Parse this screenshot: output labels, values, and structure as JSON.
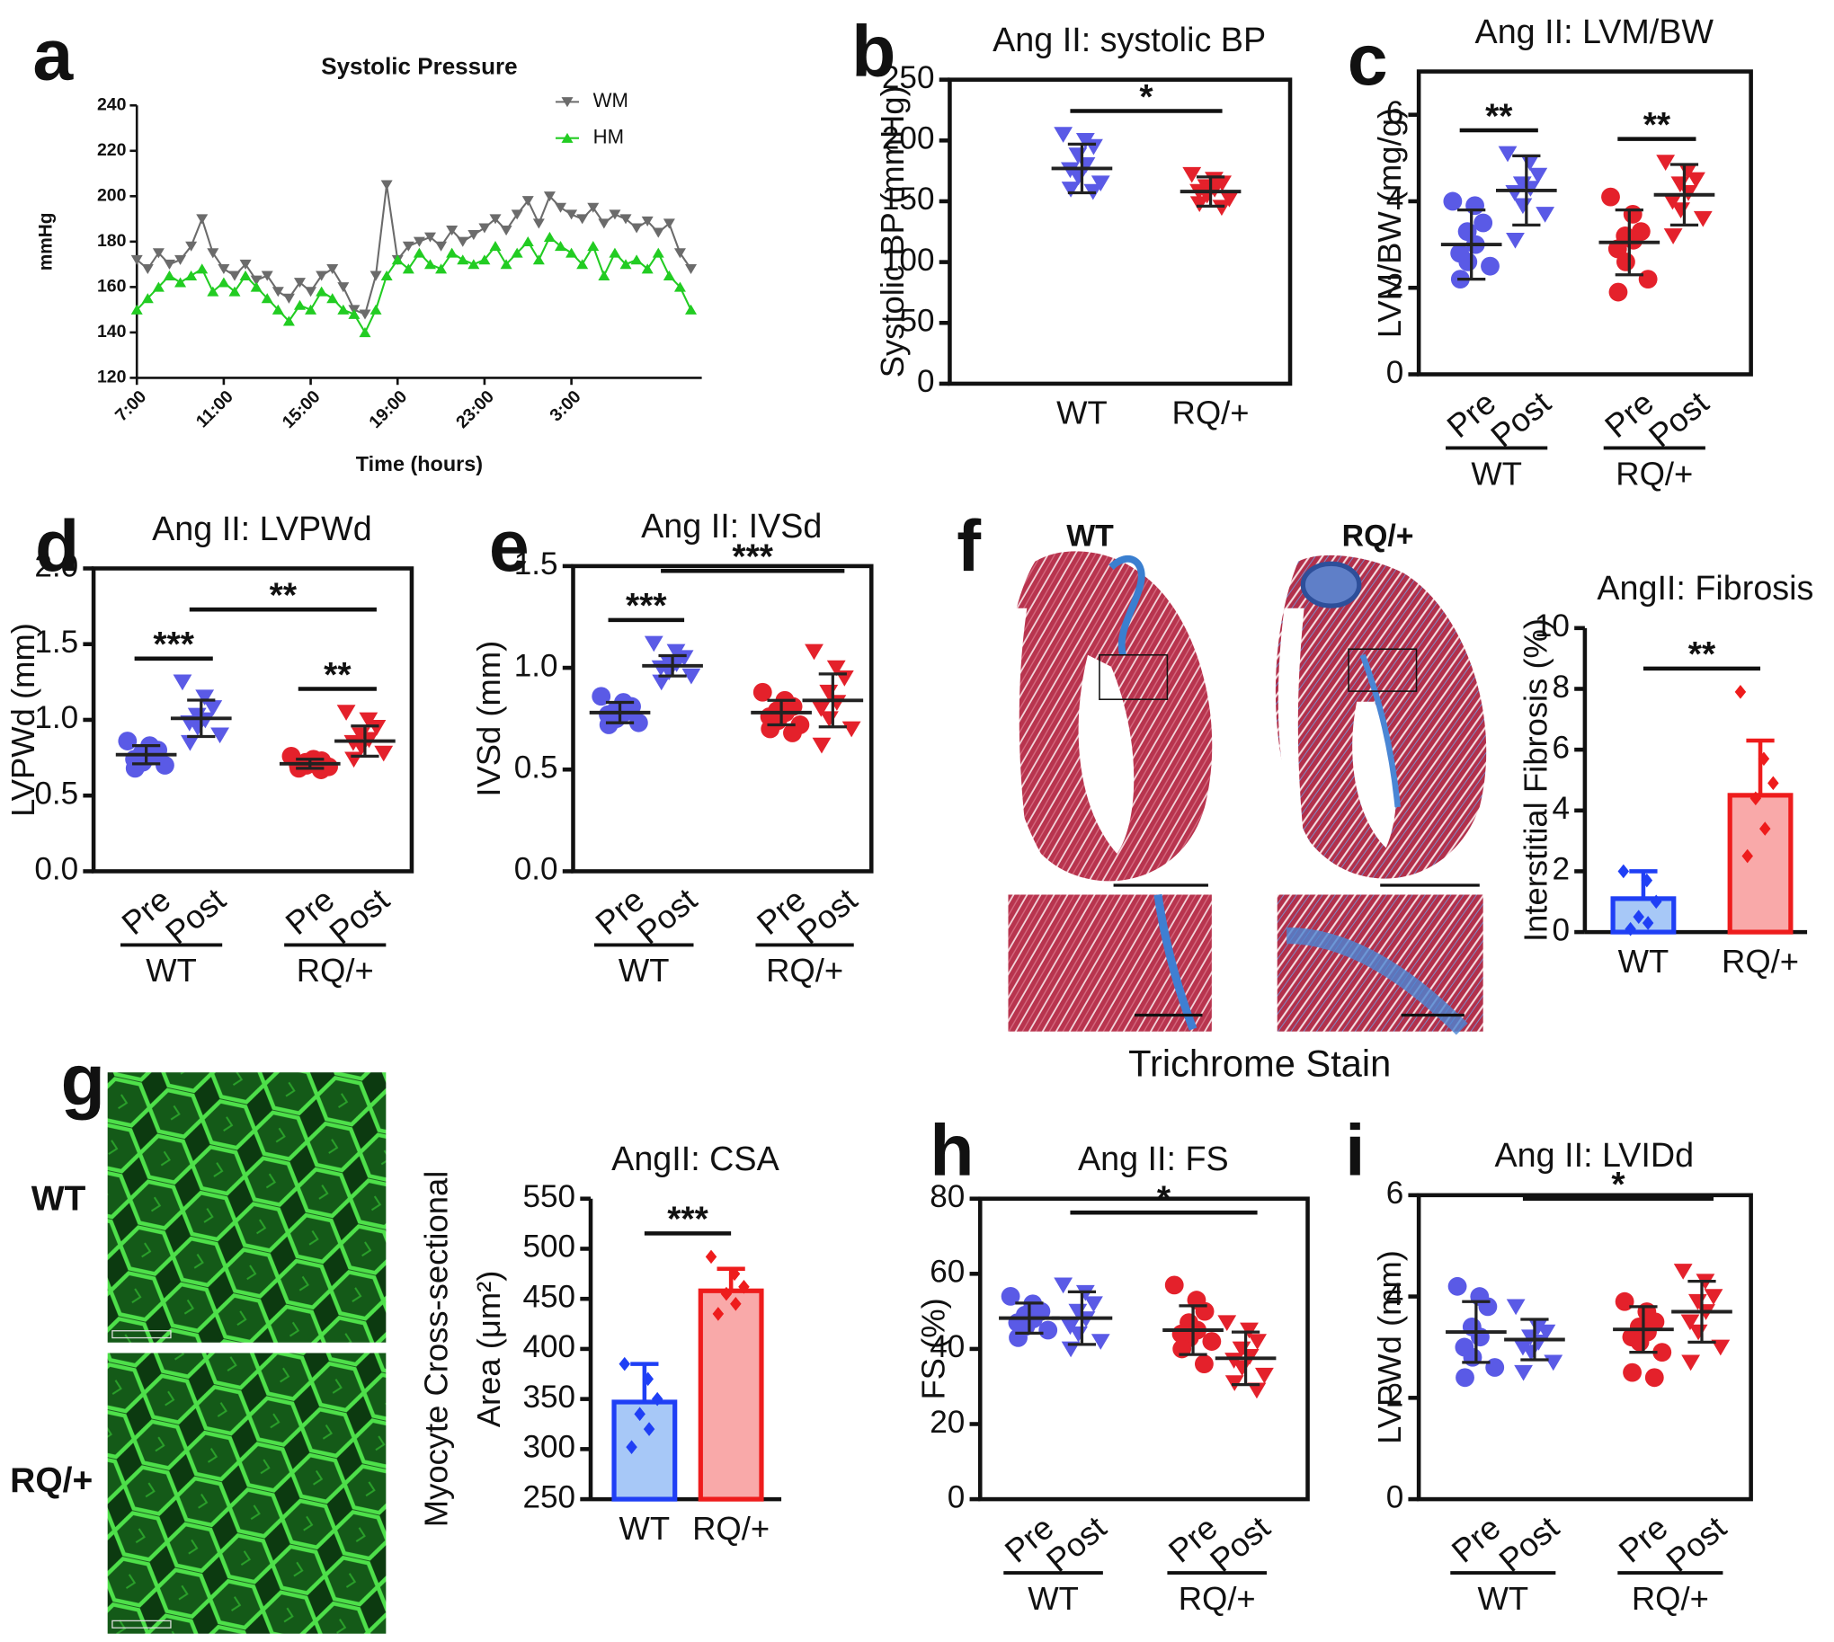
{
  "chart_data": [
    {
      "type": "line",
      "panel": "a",
      "title": "Systolic Pressure",
      "xlabel": "Time (hours)",
      "ylabel": "mmHg",
      "xlim": [
        7,
        33
      ],
      "ylim": [
        120,
        240
      ],
      "xticks": [
        {
          "value": 7,
          "label": "7:00"
        },
        {
          "value": 11,
          "label": "11:00"
        },
        {
          "value": 15,
          "label": "15:00"
        },
        {
          "value": 19,
          "label": "19:00"
        },
        {
          "value": 23,
          "label": "23:00"
        },
        {
          "value": 27,
          "label": "3:00"
        }
      ],
      "yticks": [
        120,
        140,
        160,
        180,
        200,
        220,
        240
      ],
      "legend": "upper right",
      "x": [
        7,
        7.5,
        8,
        8.5,
        9,
        9.5,
        10,
        10.5,
        11,
        11.5,
        12,
        12.5,
        13,
        13.5,
        14,
        14.5,
        15,
        15.5,
        16,
        16.5,
        17,
        17.5,
        18,
        18.5,
        19,
        19.5,
        20,
        20.5,
        21,
        21.5,
        22,
        22.5,
        23,
        23.5,
        24,
        24.5,
        25,
        25.5,
        26,
        26.5,
        27,
        27.5,
        28,
        28.5,
        29,
        29.5,
        30,
        30.5,
        31,
        31.5,
        32,
        32.5
      ],
      "series": [
        {
          "name": "WM",
          "color": "#6b6b6b",
          "marker": "triangle-down",
          "values": [
            172,
            168,
            175,
            170,
            172,
            178,
            190,
            175,
            168,
            165,
            170,
            163,
            165,
            158,
            155,
            162,
            158,
            165,
            168,
            160,
            150,
            148,
            165,
            205,
            172,
            178,
            180,
            182,
            178,
            185,
            180,
            183,
            186,
            190,
            185,
            192,
            198,
            188,
            200,
            195,
            192,
            190,
            195,
            188,
            192,
            190,
            186,
            189,
            184,
            188,
            175,
            168
          ]
        },
        {
          "name": "HM",
          "color": "#22cc22",
          "marker": "triangle-up",
          "values": [
            150,
            155,
            160,
            165,
            162,
            165,
            168,
            158,
            162,
            158,
            165,
            160,
            155,
            150,
            145,
            152,
            150,
            158,
            155,
            150,
            148,
            140,
            150,
            165,
            172,
            168,
            175,
            170,
            168,
            175,
            172,
            170,
            172,
            178,
            170,
            175,
            180,
            172,
            182,
            178,
            175,
            170,
            178,
            165,
            175,
            170,
            172,
            168,
            175,
            165,
            160,
            150
          ]
        }
      ]
    },
    {
      "type": "dotplot",
      "panel": "b",
      "title": "Ang II: systolic BP",
      "ylabel": "Systolic BP (mmHg)",
      "frame": true,
      "ylim": [
        0,
        250
      ],
      "yticks": [
        0,
        50,
        100,
        150,
        200,
        250
      ],
      "categories": [
        "WT",
        "RQ/+"
      ],
      "colors": [
        "#5a5ae6",
        "#e4212b"
      ],
      "markers": [
        "triangle-down",
        "triangle-down"
      ],
      "points": [
        [
          205,
          200,
          195,
          188,
          180,
          176,
          170,
          165,
          160,
          158
        ],
        [
          172,
          168,
          165,
          162,
          160,
          158,
          155,
          152,
          148,
          145
        ]
      ],
      "means": [
        177,
        158
      ],
      "sd": [
        20,
        12
      ],
      "significance": [
        {
          "pair": [
            0,
            1
          ],
          "label": "*"
        }
      ]
    },
    {
      "type": "dotplot",
      "panel": "c",
      "title": "Ang II: LVM/BW",
      "ylabel": "LVM/BW (mg/g)",
      "frame": true,
      "ylim": [
        0,
        7
      ],
      "yticks": [
        0,
        2,
        4,
        6
      ],
      "categories": [
        "Pre",
        "Post",
        "Pre",
        "Post"
      ],
      "groups": [
        "WT",
        "RQ/+"
      ],
      "colors": [
        "#5a5ae6",
        "#5a5ae6",
        "#e4212b",
        "#e4212b"
      ],
      "markers": [
        "circle",
        "triangle-down",
        "circle",
        "triangle-down"
      ],
      "points": [
        [
          4.0,
          3.9,
          3.5,
          3.3,
          3.0,
          2.8,
          2.6,
          2.5,
          2.2
        ],
        [
          5.1,
          4.9,
          4.6,
          4.4,
          4.3,
          4.2,
          3.9,
          3.7,
          3.1
        ],
        [
          4.1,
          3.7,
          3.3,
          3.2,
          3.1,
          2.9,
          2.6,
          2.2,
          1.9
        ],
        [
          4.9,
          4.7,
          4.5,
          4.4,
          4.2,
          4.0,
          3.8,
          3.6,
          3.2
        ]
      ],
      "means": [
        3.0,
        4.25,
        3.05,
        4.15
      ],
      "sd": [
        0.8,
        0.8,
        0.75,
        0.7
      ],
      "significance": [
        {
          "pair": [
            0,
            1
          ],
          "label": "**"
        },
        {
          "pair": [
            2,
            3
          ],
          "label": "**"
        }
      ]
    },
    {
      "type": "dotplot",
      "panel": "d",
      "title": "Ang II: LVPWd",
      "ylabel": "LVPWd (mm)",
      "frame": true,
      "ylim": [
        0,
        2
      ],
      "yticks": [
        {
          "value": 0,
          "label": "0.0"
        },
        0.5,
        {
          "value": 1,
          "label": "1.0"
        },
        1.5,
        {
          "value": 2,
          "label": "2.0"
        }
      ],
      "categories": [
        "Pre",
        "Post",
        "Pre",
        "Post"
      ],
      "groups": [
        "WT",
        "RQ/+"
      ],
      "colors": [
        "#5a5ae6",
        "#5a5ae6",
        "#e4212b",
        "#e4212b"
      ],
      "markers": [
        "circle",
        "triangle-down",
        "circle",
        "triangle-down"
      ],
      "points": [
        [
          0.86,
          0.83,
          0.8,
          0.78,
          0.76,
          0.74,
          0.72,
          0.7,
          0.68
        ],
        [
          1.25,
          1.15,
          1.08,
          1.03,
          1.0,
          0.98,
          0.95,
          0.9,
          0.85
        ],
        [
          0.76,
          0.74,
          0.73,
          0.72,
          0.71,
          0.7,
          0.7,
          0.69,
          0.68,
          0.67
        ],
        [
          1.05,
          1.0,
          0.95,
          0.9,
          0.87,
          0.85,
          0.82,
          0.78,
          0.74
        ]
      ],
      "means": [
        0.77,
        1.01,
        0.71,
        0.86
      ],
      "sd": [
        0.06,
        0.12,
        0.03,
        0.1
      ],
      "significance": [
        {
          "pair": [
            0,
            1
          ],
          "label": "***"
        },
        {
          "pair": [
            2,
            3
          ],
          "label": "**"
        },
        {
          "pair": [
            1,
            3
          ],
          "label": "**"
        }
      ]
    },
    {
      "type": "dotplot",
      "panel": "e",
      "title": "Ang II: IVSd",
      "ylabel": "IVSd (mm)",
      "frame": true,
      "ylim": [
        0,
        1.5
      ],
      "yticks": [
        {
          "value": 0,
          "label": "0.0"
        },
        0.5,
        {
          "value": 1,
          "label": "1.0"
        },
        1.5
      ],
      "categories": [
        "Pre",
        "Post",
        "Pre",
        "Post"
      ],
      "groups": [
        "WT",
        "RQ/+"
      ],
      "colors": [
        "#5a5ae6",
        "#5a5ae6",
        "#e4212b",
        "#e4212b"
      ],
      "markers": [
        "circle",
        "triangle-down",
        "circle",
        "triangle-down"
      ],
      "points": [
        [
          0.86,
          0.83,
          0.81,
          0.79,
          0.78,
          0.77,
          0.75,
          0.73,
          0.72
        ],
        [
          1.12,
          1.08,
          1.05,
          1.03,
          1.02,
          1.0,
          0.98,
          0.96,
          0.93
        ],
        [
          0.88,
          0.84,
          0.81,
          0.79,
          0.78,
          0.76,
          0.74,
          0.72,
          0.7,
          0.68
        ],
        [
          1.08,
          1.0,
          0.95,
          0.88,
          0.83,
          0.8,
          0.75,
          0.7,
          0.62
        ]
      ],
      "means": [
        0.78,
        1.01,
        0.78,
        0.84
      ],
      "sd": [
        0.05,
        0.05,
        0.06,
        0.13
      ],
      "significance": [
        {
          "pair": [
            0,
            1
          ],
          "label": "***"
        },
        {
          "pair": [
            1,
            3
          ],
          "label": "***"
        }
      ]
    },
    {
      "type": "bar",
      "title": "AngII: Fibrosis",
      "ylabel": "Interstitial Fibrosis (%)",
      "ylim": [
        0,
        10
      ],
      "yticks": [
        0,
        2,
        4,
        6,
        8,
        10
      ],
      "categories": [
        "WT",
        "RQ/+"
      ],
      "colors": [
        "#1f3ff5",
        "#ee1c1c"
      ],
      "fills": [
        "#a7c8f7",
        "#f9a9a9"
      ],
      "markers": [
        "diamond",
        "diamond"
      ],
      "values": [
        1.1,
        4.5
      ],
      "errors": [
        0.9,
        1.8
      ],
      "points": [
        [
          2.0,
          1.7,
          1.0,
          0.5,
          0.3,
          0.1
        ],
        [
          7.9,
          5.7,
          4.9,
          4.4,
          3.4,
          2.5
        ]
      ],
      "significance": [
        {
          "pair": [
            0,
            1
          ],
          "label": "**"
        }
      ]
    },
    {
      "type": "bar",
      "title": "AngII: CSA",
      "ylabel": [
        "Myocyte Cross-sectional",
        "Area (μm²)"
      ],
      "ylim": [
        250,
        550
      ],
      "yticks": [
        250,
        300,
        350,
        400,
        450,
        500,
        550
      ],
      "categories": [
        "WT",
        "RQ/+"
      ],
      "colors": [
        "#1f3ff5",
        "#ee1c1c"
      ],
      "fills": [
        "#a7c8f7",
        "#f9a9a9"
      ],
      "markers": [
        "diamond",
        "diamond"
      ],
      "values": [
        347,
        458
      ],
      "errors": [
        38,
        22
      ],
      "points": [
        [
          385,
          370,
          350,
          335,
          320,
          302
        ],
        [
          492,
          475,
          462,
          455,
          445,
          435
        ]
      ],
      "significance": [
        {
          "pair": [
            0,
            1
          ],
          "label": "***"
        }
      ]
    },
    {
      "type": "dotplot",
      "panel": "h",
      "title": "Ang II: FS",
      "ylabel": "FS (%)",
      "frame": true,
      "ylim": [
        0,
        80
      ],
      "yticks": [
        0,
        20,
        40,
        60,
        80
      ],
      "categories": [
        "Pre",
        "Post",
        "Pre",
        "Post"
      ],
      "groups": [
        "WT",
        "RQ/+"
      ],
      "colors": [
        "#5a5ae6",
        "#5a5ae6",
        "#e4212b",
        "#e4212b"
      ],
      "markers": [
        "circle",
        "triangle-down",
        "circle",
        "triangle-down"
      ],
      "points": [
        [
          54,
          52,
          50,
          49,
          48,
          47,
          46,
          45,
          43
        ],
        [
          57,
          55,
          52,
          50,
          48,
          46,
          44,
          42,
          40
        ],
        [
          57,
          53,
          50,
          47,
          45,
          44,
          43,
          42,
          40,
          36
        ],
        [
          47,
          45,
          42,
          40,
          38,
          37,
          35,
          33,
          31,
          29
        ]
      ],
      "means": [
        48.2,
        48.2,
        45,
        37.5
      ],
      "sd": [
        4,
        7,
        6.5,
        7
      ],
      "significance": [
        {
          "pair": [
            1,
            3
          ],
          "label": "*"
        }
      ]
    },
    {
      "type": "dotplot",
      "panel": "i",
      "title": "Ang II: LVIDd",
      "ylabel": "LVPWd (mm)",
      "frame": true,
      "ylim": [
        0,
        6
      ],
      "yticks": [
        0,
        2,
        4,
        6
      ],
      "categories": [
        "Pre",
        "Post",
        "Pre",
        "Post"
      ],
      "groups": [
        "WT",
        "RQ/+"
      ],
      "colors": [
        "#5a5ae6",
        "#5a5ae6",
        "#e4212b",
        "#e4212b"
      ],
      "markers": [
        "circle",
        "triangle-down",
        "circle",
        "triangle-down"
      ],
      "points": [
        [
          4.2,
          4.0,
          3.8,
          3.4,
          3.2,
          3.0,
          2.8,
          2.6,
          2.4
        ],
        [
          3.8,
          3.4,
          3.3,
          3.2,
          3.1,
          3.0,
          2.9,
          2.7,
          2.5
        ],
        [
          3.9,
          3.7,
          3.5,
          3.4,
          3.3,
          3.2,
          3.1,
          2.9,
          2.5,
          2.4
        ],
        [
          4.5,
          4.3,
          4.0,
          3.9,
          3.7,
          3.5,
          3.3,
          3.0,
          2.7
        ]
      ],
      "means": [
        3.3,
        3.15,
        3.35,
        3.7
      ],
      "sd": [
        0.6,
        0.4,
        0.45,
        0.6
      ],
      "significance": [
        {
          "pair": [
            1,
            3
          ],
          "label": "*"
        }
      ]
    }
  ],
  "images": [
    {
      "panel": "f",
      "labels": [
        "WT",
        "RQ/+"
      ],
      "caption": "Trichrome Stain"
    },
    {
      "panel": "g",
      "labels": [
        "WT",
        "RQ/+"
      ]
    }
  ]
}
